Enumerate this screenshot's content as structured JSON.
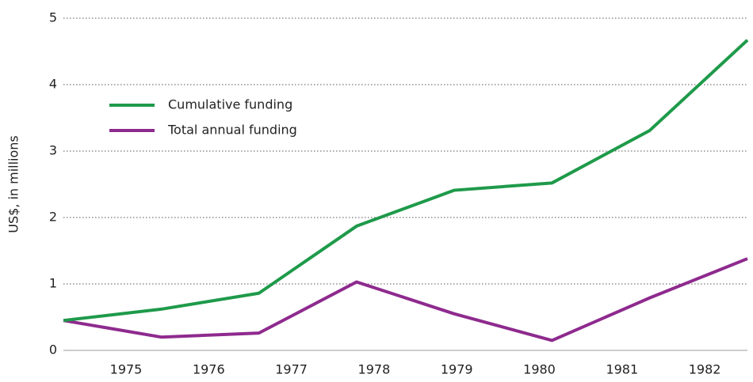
{
  "chart_data": {
    "type": "line",
    "y_label": "US$, in millions",
    "categories": [
      "1975",
      "1976",
      "1977",
      "1978",
      "1979",
      "1980",
      "1981",
      "1982"
    ],
    "series": [
      {
        "name": "Cumulative funding",
        "color": "#1e9a4a",
        "values": [
          0.45,
          0.62,
          0.86,
          1.87,
          2.41,
          2.52,
          3.31,
          4.67
        ]
      },
      {
        "name": "Total annual funding",
        "color": "#8e2a8e",
        "values": [
          0.45,
          0.2,
          0.26,
          1.03,
          0.55,
          0.15,
          0.79,
          1.38
        ]
      }
    ],
    "ylim": [
      0,
      5
    ],
    "yticks": [
      0,
      1,
      2,
      3,
      4,
      5
    ],
    "grid": true,
    "legend": "upper left"
  }
}
